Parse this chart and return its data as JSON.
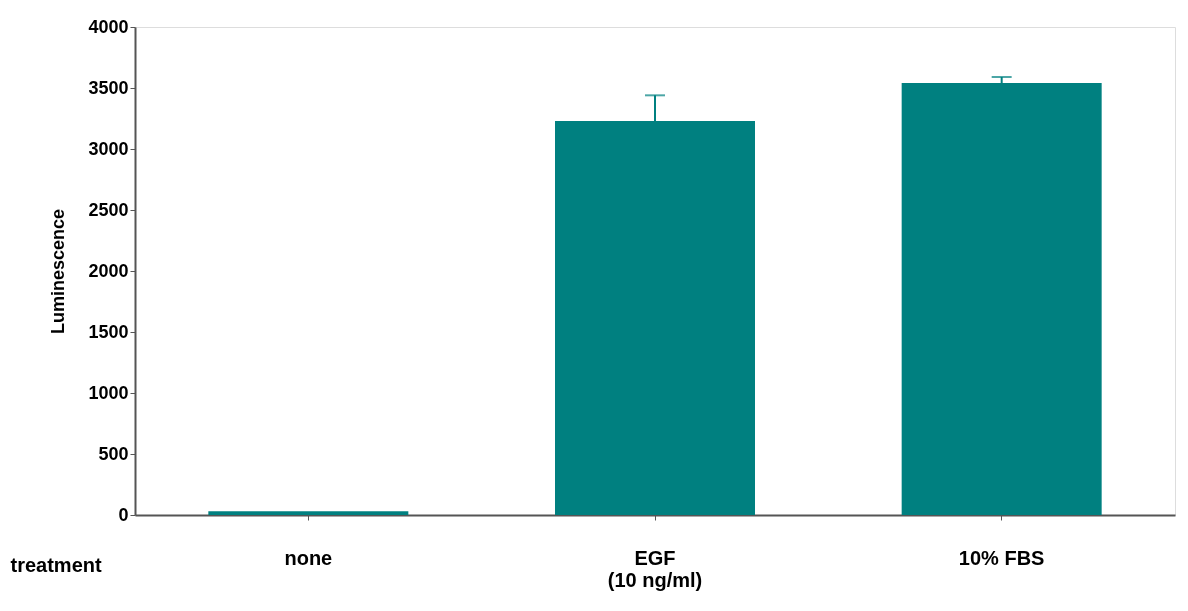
{
  "chart_data": {
    "type": "bar",
    "xlabel": "treatment",
    "ylabel": "Luminescence",
    "categories": [
      "none",
      "EGF\n(10 ng/ml)",
      "10% FBS"
    ],
    "values": [
      30,
      3230,
      3540
    ],
    "errors": [
      null,
      210,
      50
    ],
    "color": "#008080",
    "ylim": [
      0,
      4000
    ],
    "yticks": [
      0,
      500,
      1000,
      1500,
      2000,
      2500,
      3000,
      3500,
      4000
    ],
    "grid": false
  }
}
